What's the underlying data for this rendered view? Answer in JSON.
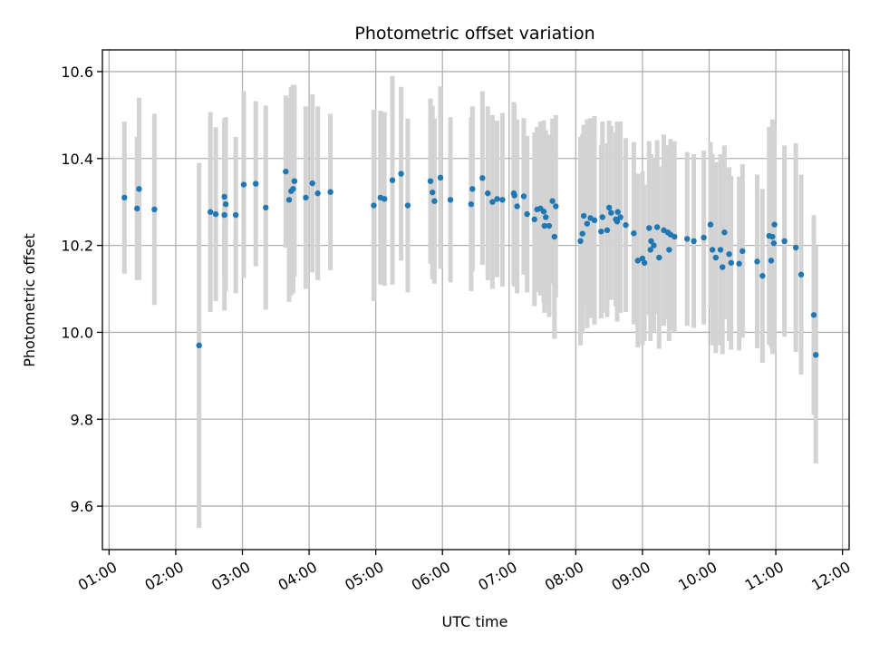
{
  "chart_data": {
    "type": "scatter",
    "title": "Photometric offset variation",
    "xlabel": "UTC time",
    "ylabel": "Photometric offset",
    "xlim": [
      0.9,
      12.1
    ],
    "ylim": [
      9.5,
      10.65
    ],
    "grid": true,
    "x_ticks": [
      1,
      2,
      3,
      4,
      5,
      6,
      7,
      8,
      9,
      10,
      11,
      12
    ],
    "x_tick_labels": [
      "01:00",
      "02:00",
      "03:00",
      "04:00",
      "05:00",
      "06:00",
      "07:00",
      "08:00",
      "09:00",
      "10:00",
      "11:00",
      "12:00"
    ],
    "y_ticks": [
      9.6,
      9.8,
      10.0,
      10.2,
      10.4,
      10.6
    ],
    "y_tick_labels": [
      "9.6",
      "9.8",
      "10.0",
      "10.2",
      "10.4",
      "10.6"
    ],
    "marker_color": "#1f77b4",
    "errorbar_color": "#d3d3d3",
    "series": [
      {
        "name": "offset",
        "x": [
          1.23,
          1.42,
          1.45,
          1.68,
          2.35,
          2.52,
          2.6,
          2.73,
          2.73,
          2.75,
          2.9,
          3.02,
          3.2,
          3.35,
          3.65,
          3.7,
          3.73,
          3.76,
          3.78,
          3.95,
          4.05,
          4.13,
          4.32,
          4.97,
          5.07,
          5.13,
          5.25,
          5.38,
          5.48,
          5.82,
          5.85,
          5.88,
          5.97,
          6.12,
          6.43,
          6.45,
          6.6,
          6.68,
          6.75,
          6.82,
          6.9,
          7.07,
          7.08,
          7.12,
          7.22,
          7.27,
          7.38,
          7.42,
          7.47,
          7.52,
          7.53,
          7.55,
          7.6,
          7.65,
          7.68,
          7.7,
          8.07,
          8.1,
          8.12,
          8.17,
          8.22,
          8.28,
          8.38,
          8.4,
          8.47,
          8.5,
          8.53,
          8.6,
          8.62,
          8.63,
          8.67,
          8.75,
          8.87,
          8.93,
          9.0,
          9.03,
          9.1,
          9.12,
          9.13,
          9.17,
          9.22,
          9.25,
          9.32,
          9.38,
          9.4,
          9.42,
          9.48,
          9.67,
          9.77,
          9.92,
          10.02,
          10.05,
          10.1,
          10.17,
          10.2,
          10.23,
          10.3,
          10.33,
          10.45,
          10.5,
          10.72,
          10.8,
          10.9,
          10.93,
          10.95,
          10.97,
          10.98,
          11.13,
          11.3,
          11.38,
          11.57,
          11.6
        ],
        "y": [
          10.31,
          10.285,
          10.33,
          10.283,
          9.97,
          10.277,
          10.272,
          10.27,
          10.312,
          10.295,
          10.27,
          10.34,
          10.342,
          10.287,
          10.37,
          10.305,
          10.325,
          10.33,
          10.348,
          10.31,
          10.343,
          10.32,
          10.323,
          10.292,
          10.31,
          10.307,
          10.35,
          10.365,
          10.292,
          10.348,
          10.322,
          10.302,
          10.356,
          10.305,
          10.295,
          10.33,
          10.355,
          10.32,
          10.3,
          10.307,
          10.305,
          10.32,
          10.315,
          10.29,
          10.313,
          10.272,
          10.26,
          10.283,
          10.285,
          10.278,
          10.245,
          10.265,
          10.245,
          10.302,
          10.22,
          10.29,
          10.21,
          10.227,
          10.268,
          10.25,
          10.263,
          10.258,
          10.232,
          10.265,
          10.235,
          10.287,
          10.275,
          10.26,
          10.255,
          10.277,
          10.265,
          10.247,
          10.228,
          10.165,
          10.17,
          10.16,
          10.24,
          10.19,
          10.21,
          10.2,
          10.242,
          10.172,
          10.235,
          10.23,
          10.19,
          10.225,
          10.22,
          10.215,
          10.21,
          10.218,
          10.248,
          10.19,
          10.172,
          10.19,
          10.15,
          10.23,
          10.18,
          10.16,
          10.158,
          10.187,
          10.163,
          10.13,
          10.222,
          10.165,
          10.22,
          10.205,
          10.248,
          10.21,
          10.195,
          10.133,
          10.04,
          9.948
        ],
        "err": [
          0.175,
          0.165,
          0.21,
          0.22,
          0.42,
          0.23,
          0.2,
          0.22,
          0.18,
          0.2,
          0.18,
          0.215,
          0.19,
          0.235,
          0.175,
          0.235,
          0.24,
          0.24,
          0.22,
          0.21,
          0.205,
          0.2,
          0.18,
          0.22,
          0.2,
          0.2,
          0.24,
          0.2,
          0.2,
          0.19,
          0.2,
          0.19,
          0.21,
          0.19,
          0.2,
          0.19,
          0.2,
          0.2,
          0.2,
          0.18,
          0.2,
          0.21,
          0.21,
          0.2,
          0.18,
          0.18,
          0.2,
          0.19,
          0.2,
          0.21,
          0.2,
          0.2,
          0.21,
          0.19,
          0.235,
          0.21,
          0.24,
          0.23,
          0.21,
          0.24,
          0.23,
          0.24,
          0.2,
          0.22,
          0.2,
          0.2,
          0.2,
          0.2,
          0.23,
          0.2,
          0.22,
          0.2,
          0.21,
          0.2,
          0.2,
          0.18,
          0.2,
          0.21,
          0.2,
          0.2,
          0.2,
          0.21,
          0.22,
          0.2,
          0.21,
          0.22,
          0.22,
          0.2,
          0.2,
          0.2,
          0.19,
          0.22,
          0.22,
          0.22,
          0.2,
          0.2,
          0.2,
          0.2,
          0.2,
          0.2,
          0.2,
          0.2,
          0.25,
          0.2,
          0.27,
          0.25,
          0.22,
          0.22,
          0.24,
          0.23,
          0.23,
          0.25
        ]
      }
    ]
  }
}
